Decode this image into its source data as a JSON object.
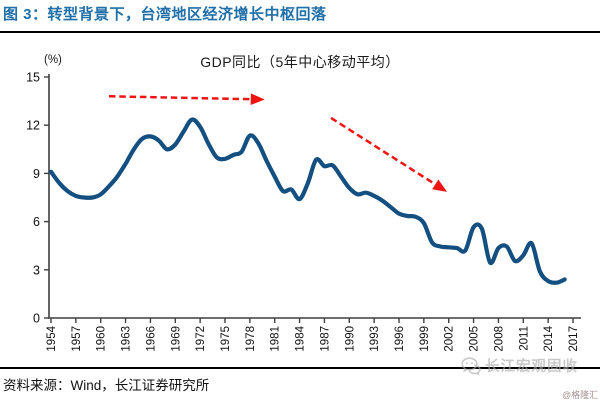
{
  "figure": {
    "caption": "图 3：转型背景下，台湾地区经济增长中枢回落",
    "source_note": "资料来源：Wind，长江证券研究所",
    "watermark": {
      "name": "长江宏观固收",
      "handle": "@格隆汇",
      "icon": "chat-bubbles-icon"
    },
    "colors": {
      "caption_blue": "#1F6FA8",
      "line_blue": "#134F80",
      "arrow_red": "#EE1414",
      "rule_black": "#000000",
      "watermark_gray": "#ABABAB"
    }
  },
  "chart_data": {
    "type": "line",
    "title": "GDP同比（5年中心移动平均）",
    "unit_label": "(%)",
    "xlabel": "",
    "ylabel": "(%)",
    "xlim": [
      1954,
      2017
    ],
    "ylim": [
      0,
      15
    ],
    "grid": false,
    "legend_position": "none",
    "x_ticks": [
      1954,
      1957,
      1960,
      1963,
      1966,
      1969,
      1972,
      1975,
      1978,
      1981,
      1984,
      1987,
      1990,
      1993,
      1996,
      1999,
      2002,
      2005,
      2008,
      2011,
      2014,
      2017
    ],
    "y_ticks": [
      0,
      3,
      6,
      9,
      12,
      15
    ],
    "series": [
      {
        "name": "GDP同比（5年中心移动平均）",
        "color": "#134F80",
        "x": [
          1954,
          1955,
          1956,
          1957,
          1958,
          1959,
          1960,
          1961,
          1962,
          1963,
          1964,
          1965,
          1966,
          1967,
          1968,
          1969,
          1970,
          1971,
          1972,
          1973,
          1974,
          1975,
          1976,
          1977,
          1978,
          1979,
          1980,
          1981,
          1982,
          1983,
          1984,
          1985,
          1986,
          1987,
          1988,
          1989,
          1990,
          1991,
          1992,
          1993,
          1994,
          1995,
          1996,
          1997,
          1998,
          1999,
          2000,
          2001,
          2002,
          2003,
          2004,
          2005,
          2006,
          2007,
          2008,
          2009,
          2010,
          2011,
          2012,
          2013,
          2014,
          2015,
          2016
        ],
        "values": [
          9.1,
          8.4,
          7.9,
          7.6,
          7.5,
          7.5,
          7.7,
          8.2,
          8.8,
          9.6,
          10.5,
          11.15,
          11.3,
          11.05,
          10.5,
          10.8,
          11.6,
          12.35,
          11.9,
          10.85,
          10.0,
          9.9,
          10.15,
          10.35,
          11.35,
          10.9,
          9.8,
          8.8,
          7.9,
          8.0,
          7.4,
          8.4,
          9.85,
          9.45,
          9.5,
          8.8,
          8.1,
          7.7,
          7.8,
          7.6,
          7.3,
          6.9,
          6.5,
          6.35,
          6.3,
          5.9,
          4.7,
          4.45,
          4.4,
          4.35,
          4.2,
          5.65,
          5.55,
          3.45,
          4.35,
          4.45,
          3.55,
          3.9,
          4.65,
          2.9,
          2.3,
          2.2,
          2.4
        ]
      }
    ],
    "annotations": [
      {
        "type": "arrow",
        "style": "dashed",
        "color": "#EE1414",
        "from": {
          "x": 1961.0,
          "y": 13.8
        },
        "to": {
          "x": 1979.8,
          "y": 13.6
        }
      },
      {
        "type": "arrow",
        "style": "dashed",
        "color": "#EE1414",
        "from": {
          "x": 1987.8,
          "y": 12.45
        },
        "to": {
          "x": 2001.8,
          "y": 7.85
        }
      }
    ]
  }
}
